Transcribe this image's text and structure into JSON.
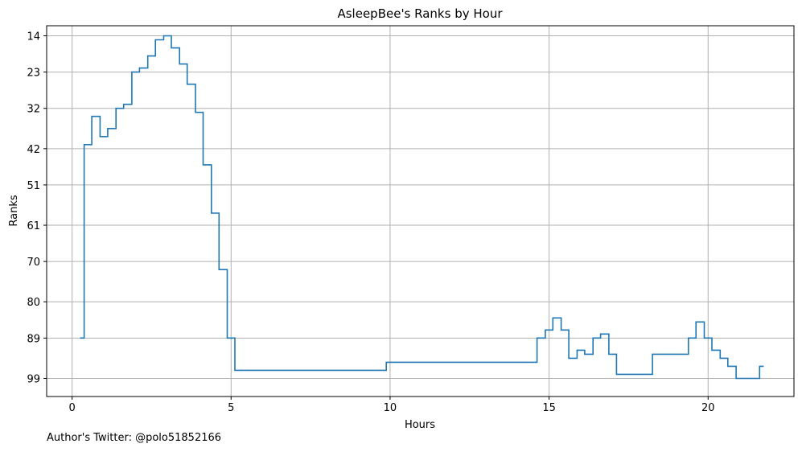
{
  "chart_data": {
    "type": "line",
    "step": "post",
    "title": "AsleepBee's Ranks by Hour",
    "xlabel": "Hours",
    "ylabel": "Ranks",
    "xlim": [
      -0.8,
      22.7
    ],
    "ylim": [
      103.5,
      11.5
    ],
    "y_inverted": true,
    "x_ticks": [
      0,
      5,
      10,
      15,
      20
    ],
    "x_tick_labels": [
      "0",
      "5",
      "10",
      "15",
      "20"
    ],
    "y_ticks": [
      14,
      23,
      32,
      42,
      51,
      61,
      70,
      80,
      89,
      99
    ],
    "y_tick_labels": [
      "14",
      "23",
      "32",
      "42",
      "51",
      "61",
      "70",
      "80",
      "89",
      "99"
    ],
    "grid": true,
    "line_color": "#1f77b4",
    "series": [
      {
        "x": [
          0.25,
          0.38,
          0.62,
          0.88,
          1.12,
          1.38,
          1.62,
          1.88,
          2.12,
          2.38,
          2.62,
          2.88,
          3.12,
          3.38,
          3.62,
          3.88,
          4.12,
          4.38,
          4.62,
          4.88,
          5.12,
          9.88,
          14.62,
          14.88,
          15.12,
          15.38,
          15.62,
          15.88,
          16.12,
          16.38,
          16.62,
          16.88,
          17.12,
          18.25,
          19.38,
          19.62,
          19.88,
          20.12,
          20.38,
          20.62,
          20.88,
          21.62,
          21.75
        ],
        "y": [
          89,
          41,
          34,
          39,
          37,
          32,
          31,
          23,
          22,
          19,
          15,
          14,
          17,
          21,
          26,
          33,
          46,
          58,
          72,
          89,
          97,
          95,
          89,
          87,
          84,
          87,
          94,
          92,
          93,
          89,
          88,
          93,
          98,
          93,
          89,
          85,
          89,
          92,
          94,
          96,
          99,
          96,
          96
        ]
      }
    ],
    "footer_text": "Author's Twitter: @polo51852166"
  }
}
